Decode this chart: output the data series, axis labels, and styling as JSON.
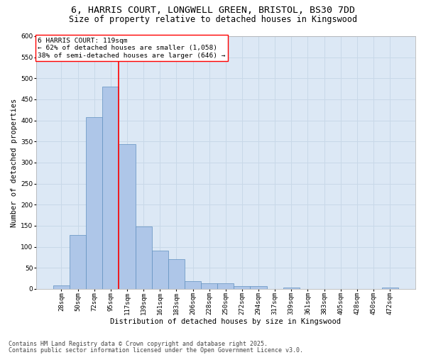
{
  "title_line1": "6, HARRIS COURT, LONGWELL GREEN, BRISTOL, BS30 7DD",
  "title_line2": "Size of property relative to detached houses in Kingswood",
  "xlabel": "Distribution of detached houses by size in Kingswood",
  "ylabel": "Number of detached properties",
  "categories": [
    "28sqm",
    "50sqm",
    "72sqm",
    "95sqm",
    "117sqm",
    "139sqm",
    "161sqm",
    "183sqm",
    "206sqm",
    "228sqm",
    "250sqm",
    "272sqm",
    "294sqm",
    "317sqm",
    "339sqm",
    "361sqm",
    "383sqm",
    "405sqm",
    "428sqm",
    "450sqm",
    "472sqm"
  ],
  "values": [
    8,
    128,
    408,
    481,
    343,
    148,
    91,
    70,
    18,
    14,
    14,
    7,
    7,
    0,
    3,
    0,
    0,
    0,
    0,
    0,
    4
  ],
  "bar_color": "#aec6e8",
  "bar_edge_color": "#6090c0",
  "grid_color": "#c8d8e8",
  "background_color": "#dce8f5",
  "vline_color": "red",
  "vline_x_index": 4,
  "annotation_text": "6 HARRIS COURT: 119sqm\n← 62% of detached houses are smaller (1,058)\n38% of semi-detached houses are larger (646) →",
  "ylim": [
    0,
    600
  ],
  "yticks": [
    0,
    50,
    100,
    150,
    200,
    250,
    300,
    350,
    400,
    450,
    500,
    550,
    600
  ],
  "footer_line1": "Contains HM Land Registry data © Crown copyright and database right 2025.",
  "footer_line2": "Contains public sector information licensed under the Open Government Licence v3.0.",
  "title_fontsize": 9.5,
  "subtitle_fontsize": 8.5,
  "axis_label_fontsize": 7.5,
  "tick_fontsize": 6.5,
  "annotation_fontsize": 6.8,
  "footer_fontsize": 6.0
}
